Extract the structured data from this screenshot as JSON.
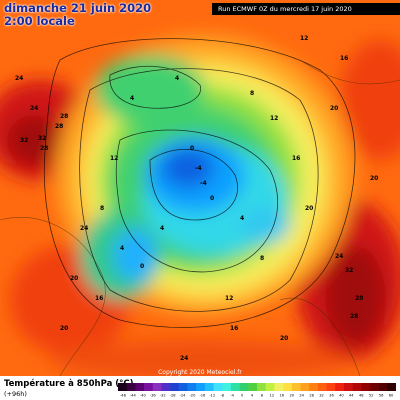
{
  "header": {
    "date": "dimanche 21 juin 2020",
    "time": "2:00 locale",
    "run": "Run ECMWF 0Z du mercredi 17 juin 2020"
  },
  "map": {
    "copyright": "Copyright 2020 Meteociel.fr",
    "labels": [
      {
        "text": "24"
      },
      {
        "text": "28"
      },
      {
        "text": "32"
      },
      {
        "text": "28"
      },
      {
        "text": "28"
      },
      {
        "text": "32"
      },
      {
        "text": "32"
      },
      {
        "text": "28"
      },
      {
        "text": "24"
      },
      {
        "text": "28"
      },
      {
        "text": "20"
      },
      {
        "text": "16"
      },
      {
        "text": "12"
      },
      {
        "text": "8"
      },
      {
        "text": "4"
      },
      {
        "text": "4"
      },
      {
        "text": "0"
      },
      {
        "text": "-4"
      },
      {
        "text": "4"
      },
      {
        "text": "0"
      },
      {
        "text": "8"
      },
      {
        "text": "16"
      },
      {
        "text": "20"
      },
      {
        "text": "24"
      },
      {
        "text": "20"
      },
      {
        "text": "16"
      },
      {
        "text": "12"
      },
      {
        "text": "24"
      },
      {
        "text": "20"
      },
      {
        "text": "12"
      },
      {
        "text": "8"
      },
      {
        "text": "4"
      },
      {
        "text": "0"
      },
      {
        "text": "-4"
      },
      {
        "text": "4"
      },
      {
        "text": "12"
      },
      {
        "text": "16"
      },
      {
        "text": "20"
      },
      {
        "text": "24"
      },
      {
        "text": "20"
      }
    ]
  },
  "footer": {
    "title": "Température à 850hPa (°C)",
    "subtitle": "(+96h)"
  },
  "legend": {
    "colors": [
      "#1a001a",
      "#3a0040",
      "#5a0070",
      "#7a10a0",
      "#8a30c0",
      "#5030c8",
      "#2040d0",
      "#1060e0",
      "#1080f0",
      "#10a0ff",
      "#20c0ff",
      "#40e0ff",
      "#40f0e0",
      "#30e0a0",
      "#30d070",
      "#50d040",
      "#90e040",
      "#c0f040",
      "#f0f060",
      "#ffe040",
      "#ffc030",
      "#ffa020",
      "#ff8010",
      "#ff6010",
      "#ff4010",
      "#f02010",
      "#d01010",
      "#b00808",
      "#900000",
      "#700000",
      "#500000",
      "#300000"
    ],
    "ticks": [
      "-48",
      "-44",
      "-40",
      "-36",
      "-32",
      "-28",
      "-24",
      "-20",
      "-16",
      "-12",
      "-8",
      "-4",
      "0",
      "4",
      "8",
      "12",
      "16",
      "20",
      "24",
      "28",
      "32",
      "36",
      "40",
      "44",
      "48",
      "52",
      "56",
      "60"
    ]
  }
}
